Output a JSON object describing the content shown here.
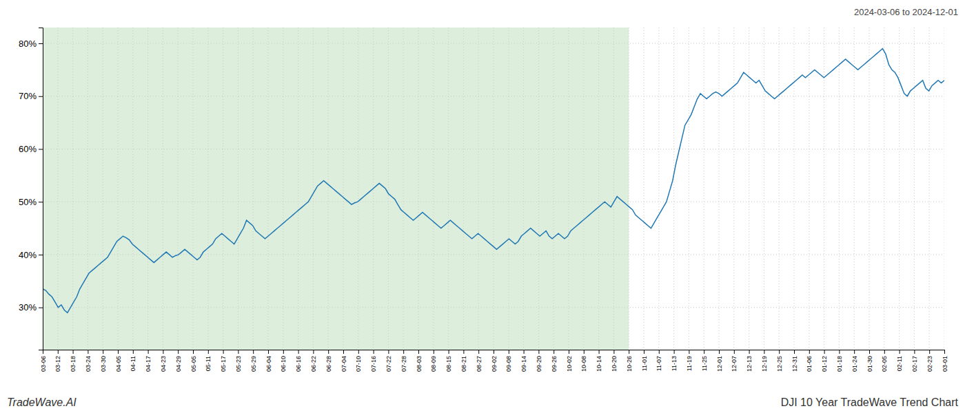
{
  "chart_data": {
    "type": "line",
    "title": "DJI 10 Year TradeWave Trend Chart",
    "subtitle": "2024-03-06 to 2024-12-01",
    "annotation": "TradeWave.AI",
    "color": "#1f77b4",
    "grid": true,
    "xlim": [
      0,
      292
    ],
    "xticks": [
      {
        "value": 0,
        "label": "03-06"
      },
      {
        "value": 4.866667,
        "label": "03-12"
      },
      {
        "value": 9.733333,
        "label": "03-18"
      },
      {
        "value": 14.6,
        "label": "03-24"
      },
      {
        "value": 19.466667,
        "label": "03-30"
      },
      {
        "value": 24.333333,
        "label": "04-05"
      },
      {
        "value": 29.2,
        "label": "04-11"
      },
      {
        "value": 34.066667,
        "label": "04-17"
      },
      {
        "value": 38.933333,
        "label": "04-23"
      },
      {
        "value": 43.8,
        "label": "04-29"
      },
      {
        "value": 48.666667,
        "label": "05-05"
      },
      {
        "value": 53.533333,
        "label": "05-11"
      },
      {
        "value": 58.4,
        "label": "05-17"
      },
      {
        "value": 63.266667,
        "label": "05-23"
      },
      {
        "value": 68.133333,
        "label": "05-29"
      },
      {
        "value": 73,
        "label": "06-04"
      },
      {
        "value": 77.866667,
        "label": "06-10"
      },
      {
        "value": 82.733333,
        "label": "06-16"
      },
      {
        "value": 87.6,
        "label": "06-22"
      },
      {
        "value": 92.466667,
        "label": "06-28"
      },
      {
        "value": 97.333333,
        "label": "07-04"
      },
      {
        "value": 102.2,
        "label": "07-10"
      },
      {
        "value": 107.066667,
        "label": "07-16"
      },
      {
        "value": 111.933333,
        "label": "07-22"
      },
      {
        "value": 116.8,
        "label": "07-28"
      },
      {
        "value": 121.666667,
        "label": "08-03"
      },
      {
        "value": 126.533333,
        "label": "08-09"
      },
      {
        "value": 131.4,
        "label": "08-15"
      },
      {
        "value": 136.266667,
        "label": "08-21"
      },
      {
        "value": 141.133333,
        "label": "08-27"
      },
      {
        "value": 146,
        "label": "09-02"
      },
      {
        "value": 150.866667,
        "label": "09-08"
      },
      {
        "value": 155.733333,
        "label": "09-14"
      },
      {
        "value": 160.6,
        "label": "09-20"
      },
      {
        "value": 165.466667,
        "label": "09-26"
      },
      {
        "value": 170.333333,
        "label": "10-02"
      },
      {
        "value": 175.2,
        "label": "10-08"
      },
      {
        "value": 180.066667,
        "label": "10-14"
      },
      {
        "value": 184.933333,
        "label": "10-20"
      },
      {
        "value": 189.8,
        "label": "10-26"
      },
      {
        "value": 194.666667,
        "label": "11-01"
      },
      {
        "value": 199.533333,
        "label": "11-07"
      },
      {
        "value": 204.4,
        "label": "11-13"
      },
      {
        "value": 209.266667,
        "label": "11-19"
      },
      {
        "value": 214.133333,
        "label": "11-25"
      },
      {
        "value": 219,
        "label": "12-01"
      },
      {
        "value": 223.866667,
        "label": "12-07"
      },
      {
        "value": 228.733333,
        "label": "12-13"
      },
      {
        "value": 233.6,
        "label": "12-19"
      },
      {
        "value": 238.466667,
        "label": "12-25"
      },
      {
        "value": 243.333333,
        "label": "12-31"
      },
      {
        "value": 248.2,
        "label": "01-06"
      },
      {
        "value": 253.066667,
        "label": "01-12"
      },
      {
        "value": 257.933333,
        "label": "01-18"
      },
      {
        "value": 262.8,
        "label": "01-24"
      },
      {
        "value": 267.666667,
        "label": "01-30"
      },
      {
        "value": 272.533333,
        "label": "02-05"
      },
      {
        "value": 277.4,
        "label": "02-11"
      },
      {
        "value": 282.266667,
        "label": "02-17"
      },
      {
        "value": 287.133333,
        "label": "02-23"
      },
      {
        "value": 292,
        "label": "03-01"
      }
    ],
    "ylim": [
      22,
      83
    ],
    "yticks": [
      {
        "value": 30,
        "label": "30%"
      },
      {
        "value": 40,
        "label": "40%"
      },
      {
        "value": 50,
        "label": "50%"
      },
      {
        "value": 60,
        "label": "60%"
      },
      {
        "value": 70,
        "label": "70%"
      },
      {
        "value": 80,
        "label": "80%"
      }
    ],
    "span": {
      "xlim": [
        0,
        189.8
      ],
      "color": "#ddeedd"
    },
    "values": [
      33.5,
      33.2,
      32.5,
      32.0,
      31.0,
      30.0,
      30.5,
      29.5,
      29.0,
      30.0,
      31.0,
      32.0,
      33.5,
      34.5,
      35.5,
      36.5,
      37.0,
      37.5,
      38.0,
      38.5,
      39.0,
      39.5,
      40.5,
      41.5,
      42.5,
      43.0,
      43.5,
      43.2,
      42.8,
      42.0,
      41.5,
      41.0,
      40.5,
      40.0,
      39.5,
      39.0,
      38.5,
      39.0,
      39.5,
      40.0,
      40.5,
      40.0,
      39.5,
      39.8,
      40.0,
      40.5,
      41.0,
      40.5,
      40.0,
      39.5,
      39.0,
      39.5,
      40.5,
      41.0,
      41.5,
      42.0,
      43.0,
      43.5,
      44.0,
      43.5,
      43.0,
      42.5,
      42.0,
      43.0,
      44.0,
      45.0,
      46.5,
      46.0,
      45.5,
      44.5,
      44.0,
      43.5,
      43.0,
      43.5,
      44.0,
      44.5,
      45.0,
      45.5,
      46.0,
      46.5,
      47.0,
      47.5,
      48.0,
      48.5,
      49.0,
      49.5,
      50.0,
      51.0,
      52.0,
      53.0,
      53.5,
      54.0,
      53.5,
      53.0,
      52.5,
      52.0,
      51.5,
      51.0,
      50.5,
      50.0,
      49.5,
      49.8,
      50.0,
      50.5,
      51.0,
      51.5,
      52.0,
      52.5,
      53.0,
      53.5,
      53.0,
      52.5,
      51.5,
      51.0,
      50.5,
      49.5,
      48.5,
      48.0,
      47.5,
      47.0,
      46.5,
      47.0,
      47.5,
      48.0,
      47.5,
      47.0,
      46.5,
      46.0,
      45.5,
      45.0,
      45.5,
      46.0,
      46.5,
      46.0,
      45.5,
      45.0,
      44.5,
      44.0,
      43.5,
      43.0,
      43.5,
      44.0,
      43.5,
      43.0,
      42.5,
      42.0,
      41.5,
      41.0,
      41.5,
      42.0,
      42.5,
      43.0,
      42.5,
      42.0,
      42.5,
      43.5,
      44.0,
      44.5,
      45.0,
      44.5,
      44.0,
      43.5,
      44.0,
      44.5,
      43.5,
      43.0,
      43.5,
      44.0,
      43.5,
      43.0,
      43.5,
      44.5,
      45.0,
      45.5,
      46.0,
      46.5,
      47.0,
      47.5,
      48.0,
      48.5,
      49.0,
      49.5,
      50.0,
      49.5,
      49.0,
      50.0,
      51.0,
      50.5,
      50.0,
      49.5,
      49.0,
      48.5,
      47.5,
      47.0,
      46.5,
      46.0,
      45.5,
      45.0,
      46.0,
      47.0,
      48.0,
      49.0,
      50.0,
      52.0,
      54.0,
      57.0,
      59.5,
      62.0,
      64.5,
      65.5,
      66.5,
      68.0,
      69.5,
      70.5,
      70.0,
      69.5,
      70.0,
      70.5,
      70.8,
      70.5,
      70.0,
      70.5,
      71.0,
      71.5,
      72.0,
      72.5,
      73.5,
      74.5,
      74.0,
      73.5,
      73.0,
      72.5,
      73.0,
      72.0,
      71.0,
      70.5,
      70.0,
      69.5,
      70.0,
      70.5,
      71.0,
      71.5,
      72.0,
      72.5,
      73.0,
      73.5,
      74.0,
      73.5,
      74.0,
      74.5,
      75.0,
      74.5,
      74.0,
      73.5,
      74.0,
      74.5,
      75.0,
      75.5,
      76.0,
      76.5,
      77.0,
      76.5,
      76.0,
      75.5,
      75.0,
      75.5,
      76.0,
      76.5,
      77.0,
      77.5,
      78.0,
      78.5,
      79.0,
      78.0,
      76.0,
      75.0,
      74.5,
      73.5,
      72.0,
      70.5,
      70.0,
      71.0,
      71.5,
      72.0,
      72.5,
      73.0,
      71.5,
      71.0,
      72.0,
      72.5,
      73.0,
      72.5,
      73.0
    ]
  }
}
